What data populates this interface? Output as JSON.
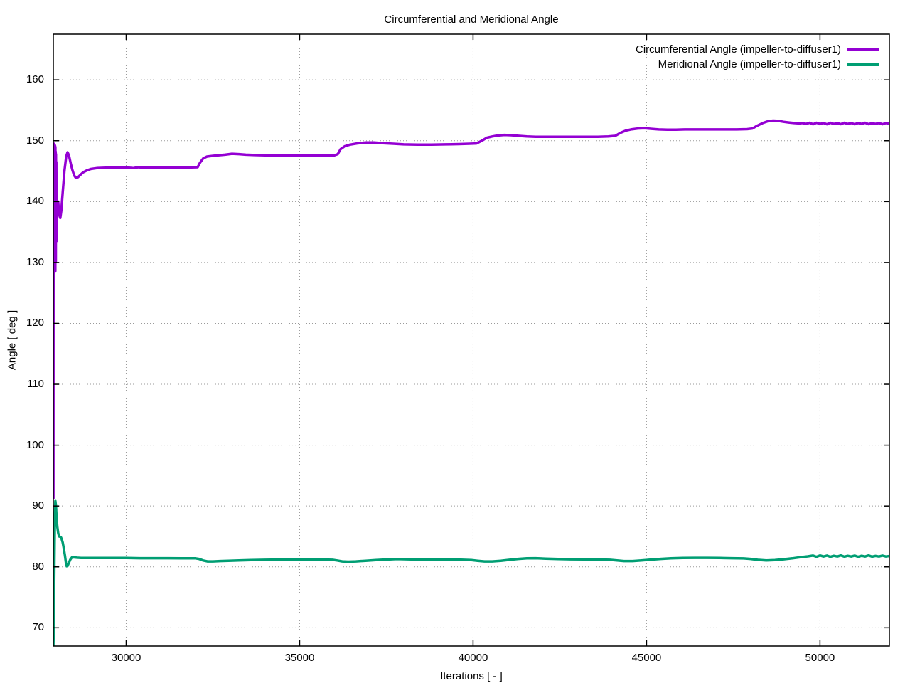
{
  "chart_data": {
    "type": "line",
    "title": "Circumferential and Meridional Angle",
    "xlabel": "Iterations [ - ]",
    "ylabel": "Angle [ deg ]",
    "xlim": [
      27900,
      52000
    ],
    "ylim": [
      67,
      167.5
    ],
    "grid": true,
    "legend_position": "top-right-inside",
    "x_ticks": {
      "values": [
        30000,
        35000,
        40000,
        45000,
        50000
      ],
      "labels": [
        "30000",
        "35000",
        "40000",
        "45000",
        "50000"
      ]
    },
    "y_ticks": {
      "values": [
        70,
        80,
        90,
        100,
        110,
        120,
        130,
        140,
        150,
        160
      ],
      "labels": [
        "70",
        "80",
        "90",
        "100",
        "110",
        "120",
        "130",
        "140",
        "150",
        "160"
      ]
    },
    "grid_color": "#9a9a9a",
    "border_color": "#000000",
    "series": [
      {
        "name": "Circumferential Angle (impeller-to-diffuser1)",
        "color": "#9400d3",
        "points": [
          [
            27900,
            147.5
          ],
          [
            27903,
            91.3
          ],
          [
            27906,
            148.8
          ],
          [
            27909,
            128.6
          ],
          [
            27912,
            149.3
          ],
          [
            27915,
            131.5
          ],
          [
            27918,
            149.5
          ],
          [
            27921,
            128.3
          ],
          [
            27924,
            149.2
          ],
          [
            27927,
            130.5
          ],
          [
            27930,
            149.4
          ],
          [
            27933,
            128.4
          ],
          [
            27936,
            149.0
          ],
          [
            27939,
            132.8
          ],
          [
            27942,
            149.3
          ],
          [
            27945,
            129.0
          ],
          [
            27948,
            148.6
          ],
          [
            27951,
            134.0
          ],
          [
            27954,
            149.1
          ],
          [
            27957,
            128.6
          ],
          [
            27960,
            148.9
          ],
          [
            27964,
            135.5
          ],
          [
            27968,
            148.2
          ],
          [
            27972,
            130.2
          ],
          [
            27976,
            147.8
          ],
          [
            27981,
            136.8
          ],
          [
            27986,
            146.5
          ],
          [
            27992,
            133.5
          ],
          [
            27998,
            144.0
          ],
          [
            28005,
            138.0
          ],
          [
            28015,
            139.5
          ],
          [
            28040,
            140.0
          ],
          [
            28070,
            137.8
          ],
          [
            28100,
            137.3
          ],
          [
            28130,
            138.5
          ],
          [
            28170,
            141.5
          ],
          [
            28220,
            145.0
          ],
          [
            28270,
            147.4
          ],
          [
            28310,
            148.1
          ],
          [
            28350,
            147.6
          ],
          [
            28400,
            146.3
          ],
          [
            28450,
            145.2
          ],
          [
            28500,
            144.3
          ],
          [
            28550,
            143.9
          ],
          [
            28610,
            144.0
          ],
          [
            28680,
            144.4
          ],
          [
            28760,
            144.8
          ],
          [
            28860,
            145.1
          ],
          [
            28980,
            145.35
          ],
          [
            29150,
            145.5
          ],
          [
            29400,
            145.55
          ],
          [
            29700,
            145.6
          ],
          [
            30000,
            145.6
          ],
          [
            30200,
            145.5
          ],
          [
            30350,
            145.65
          ],
          [
            30500,
            145.55
          ],
          [
            30700,
            145.6
          ],
          [
            31000,
            145.6
          ],
          [
            31400,
            145.6
          ],
          [
            31800,
            145.6
          ],
          [
            32060,
            145.65
          ],
          [
            32130,
            146.4
          ],
          [
            32220,
            147.1
          ],
          [
            32330,
            147.4
          ],
          [
            32480,
            147.5
          ],
          [
            32650,
            147.6
          ],
          [
            32850,
            147.7
          ],
          [
            33050,
            147.85
          ],
          [
            33250,
            147.8
          ],
          [
            33450,
            147.7
          ],
          [
            33700,
            147.65
          ],
          [
            34000,
            147.6
          ],
          [
            34400,
            147.55
          ],
          [
            34800,
            147.55
          ],
          [
            35200,
            147.55
          ],
          [
            35600,
            147.55
          ],
          [
            36000,
            147.6
          ],
          [
            36100,
            147.8
          ],
          [
            36180,
            148.6
          ],
          [
            36300,
            149.1
          ],
          [
            36450,
            149.35
          ],
          [
            36650,
            149.55
          ],
          [
            36900,
            149.7
          ],
          [
            37150,
            149.7
          ],
          [
            37400,
            149.6
          ],
          [
            37700,
            149.5
          ],
          [
            38000,
            149.4
          ],
          [
            38400,
            149.35
          ],
          [
            38800,
            149.35
          ],
          [
            39200,
            149.4
          ],
          [
            39600,
            149.45
          ],
          [
            39900,
            149.5
          ],
          [
            40100,
            149.55
          ],
          [
            40250,
            150.0
          ],
          [
            40400,
            150.5
          ],
          [
            40550,
            150.7
          ],
          [
            40700,
            150.85
          ],
          [
            40900,
            150.95
          ],
          [
            41100,
            150.9
          ],
          [
            41300,
            150.8
          ],
          [
            41550,
            150.7
          ],
          [
            41800,
            150.65
          ],
          [
            42100,
            150.65
          ],
          [
            42400,
            150.65
          ],
          [
            42700,
            150.65
          ],
          [
            43000,
            150.65
          ],
          [
            43300,
            150.65
          ],
          [
            43600,
            150.65
          ],
          [
            43900,
            150.7
          ],
          [
            44100,
            150.8
          ],
          [
            44250,
            151.3
          ],
          [
            44400,
            151.65
          ],
          [
            44550,
            151.85
          ],
          [
            44750,
            152.0
          ],
          [
            44950,
            152.05
          ],
          [
            45150,
            151.95
          ],
          [
            45350,
            151.85
          ],
          [
            45600,
            151.8
          ],
          [
            45850,
            151.8
          ],
          [
            46100,
            151.85
          ],
          [
            46400,
            151.85
          ],
          [
            46700,
            151.85
          ],
          [
            47000,
            151.85
          ],
          [
            47300,
            151.85
          ],
          [
            47600,
            151.85
          ],
          [
            47900,
            151.9
          ],
          [
            48050,
            152.0
          ],
          [
            48200,
            152.5
          ],
          [
            48350,
            152.9
          ],
          [
            48500,
            153.2
          ],
          [
            48650,
            153.3
          ],
          [
            48800,
            153.25
          ],
          [
            48950,
            153.1
          ],
          [
            49100,
            153.0
          ],
          [
            49250,
            152.9
          ],
          [
            49400,
            152.85
          ],
          [
            49500,
            152.9
          ],
          [
            49600,
            152.75
          ],
          [
            49700,
            152.95
          ],
          [
            49800,
            152.7
          ],
          [
            49900,
            152.95
          ],
          [
            50000,
            152.75
          ],
          [
            50100,
            152.9
          ],
          [
            50200,
            152.7
          ],
          [
            50300,
            152.95
          ],
          [
            50400,
            152.75
          ],
          [
            50500,
            152.9
          ],
          [
            50600,
            152.72
          ],
          [
            50700,
            152.95
          ],
          [
            50800,
            152.75
          ],
          [
            50900,
            152.9
          ],
          [
            51000,
            152.7
          ],
          [
            51100,
            152.92
          ],
          [
            51200,
            152.75
          ],
          [
            51300,
            152.95
          ],
          [
            51400,
            152.72
          ],
          [
            51500,
            152.9
          ],
          [
            51600,
            152.75
          ],
          [
            51700,
            152.92
          ],
          [
            51800,
            152.7
          ],
          [
            51900,
            152.9
          ],
          [
            52000,
            152.8
          ]
        ]
      },
      {
        "name": "Meridional Angle (impeller-to-diffuser1)",
        "color": "#009e73",
        "points": [
          [
            27900,
            66.5
          ],
          [
            27912,
            70.5
          ],
          [
            27924,
            77.0
          ],
          [
            27936,
            84.0
          ],
          [
            27948,
            89.0
          ],
          [
            27960,
            90.8
          ],
          [
            27975,
            90.0
          ],
          [
            27995,
            88.0
          ],
          [
            28015,
            86.6
          ],
          [
            28040,
            85.6
          ],
          [
            28065,
            85.0
          ],
          [
            28090,
            84.95
          ],
          [
            28115,
            84.9
          ],
          [
            28140,
            84.6
          ],
          [
            28170,
            84.0
          ],
          [
            28200,
            83.1
          ],
          [
            28235,
            81.9
          ],
          [
            28265,
            80.6
          ],
          [
            28285,
            80.1
          ],
          [
            28310,
            80.15
          ],
          [
            28345,
            80.6
          ],
          [
            28390,
            81.2
          ],
          [
            28440,
            81.6
          ],
          [
            28500,
            81.55
          ],
          [
            28580,
            81.5
          ],
          [
            28700,
            81.45
          ],
          [
            28900,
            81.45
          ],
          [
            29200,
            81.45
          ],
          [
            29600,
            81.45
          ],
          [
            30000,
            81.45
          ],
          [
            30400,
            81.42
          ],
          [
            30800,
            81.42
          ],
          [
            31200,
            81.42
          ],
          [
            31600,
            81.4
          ],
          [
            32000,
            81.4
          ],
          [
            32100,
            81.3
          ],
          [
            32220,
            81.05
          ],
          [
            32350,
            80.9
          ],
          [
            32500,
            80.9
          ],
          [
            32700,
            80.95
          ],
          [
            32950,
            81.0
          ],
          [
            33250,
            81.05
          ],
          [
            33600,
            81.1
          ],
          [
            34000,
            81.15
          ],
          [
            34400,
            81.2
          ],
          [
            34800,
            81.2
          ],
          [
            35200,
            81.2
          ],
          [
            35600,
            81.2
          ],
          [
            35950,
            81.15
          ],
          [
            36080,
            81.05
          ],
          [
            36230,
            80.9
          ],
          [
            36400,
            80.85
          ],
          [
            36620,
            80.9
          ],
          [
            36900,
            81.0
          ],
          [
            37200,
            81.1
          ],
          [
            37500,
            81.2
          ],
          [
            37800,
            81.28
          ],
          [
            38100,
            81.25
          ],
          [
            38450,
            81.2
          ],
          [
            38850,
            81.2
          ],
          [
            39250,
            81.2
          ],
          [
            39650,
            81.18
          ],
          [
            39950,
            81.12
          ],
          [
            40130,
            81.0
          ],
          [
            40330,
            80.9
          ],
          [
            40550,
            80.9
          ],
          [
            40800,
            81.0
          ],
          [
            41050,
            81.15
          ],
          [
            41300,
            81.3
          ],
          [
            41550,
            81.4
          ],
          [
            41800,
            81.42
          ],
          [
            42100,
            81.35
          ],
          [
            42450,
            81.28
          ],
          [
            42800,
            81.25
          ],
          [
            43200,
            81.22
          ],
          [
            43600,
            81.2
          ],
          [
            43950,
            81.15
          ],
          [
            44150,
            81.05
          ],
          [
            44350,
            80.95
          ],
          [
            44600,
            80.95
          ],
          [
            44850,
            81.05
          ],
          [
            45100,
            81.18
          ],
          [
            45400,
            81.3
          ],
          [
            45700,
            81.4
          ],
          [
            46050,
            81.45
          ],
          [
            46400,
            81.48
          ],
          [
            46750,
            81.48
          ],
          [
            47100,
            81.45
          ],
          [
            47450,
            81.42
          ],
          [
            47800,
            81.38
          ],
          [
            48000,
            81.3
          ],
          [
            48200,
            81.15
          ],
          [
            48450,
            81.05
          ],
          [
            48700,
            81.1
          ],
          [
            48950,
            81.25
          ],
          [
            49200,
            81.4
          ],
          [
            49450,
            81.6
          ],
          [
            49650,
            81.72
          ],
          [
            49800,
            81.85
          ],
          [
            49900,
            81.65
          ],
          [
            50000,
            81.88
          ],
          [
            50100,
            81.7
          ],
          [
            50200,
            81.85
          ],
          [
            50300,
            81.65
          ],
          [
            50400,
            81.82
          ],
          [
            50500,
            81.7
          ],
          [
            50600,
            81.88
          ],
          [
            50700,
            81.68
          ],
          [
            50800,
            81.82
          ],
          [
            50900,
            81.7
          ],
          [
            51000,
            81.85
          ],
          [
            51100,
            81.65
          ],
          [
            51200,
            81.82
          ],
          [
            51300,
            81.7
          ],
          [
            51400,
            81.88
          ],
          [
            51500,
            81.68
          ],
          [
            51600,
            81.8
          ],
          [
            51700,
            81.7
          ],
          [
            51800,
            81.85
          ],
          [
            51900,
            81.7
          ],
          [
            52000,
            81.78
          ]
        ]
      }
    ]
  }
}
